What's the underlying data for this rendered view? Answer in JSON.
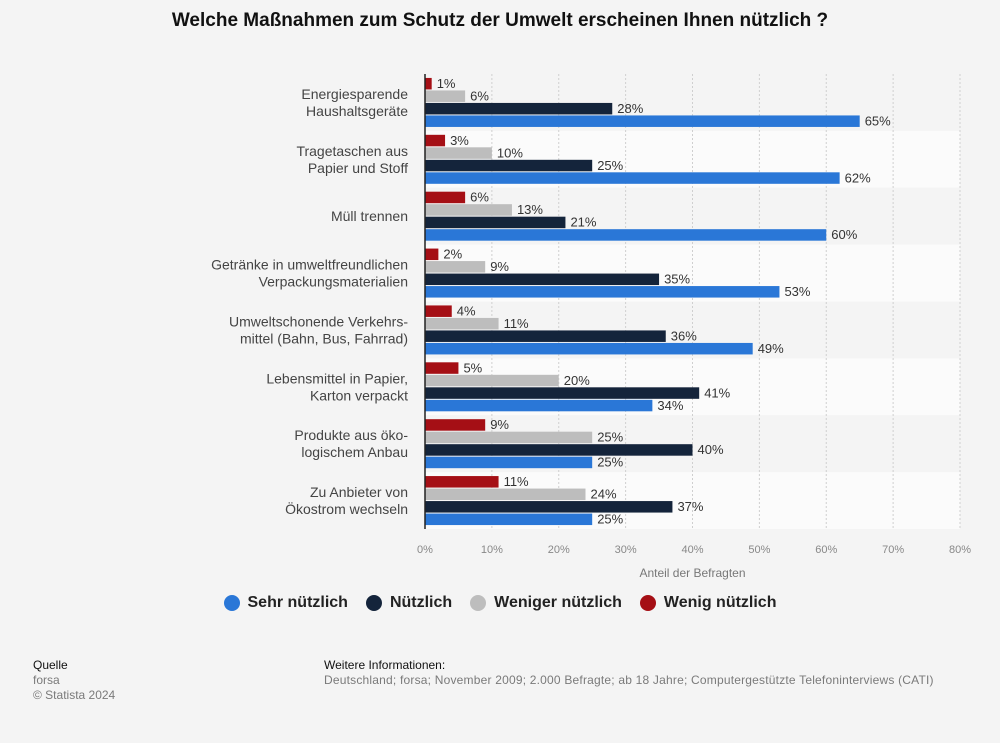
{
  "chart_data": {
    "type": "bar",
    "orientation": "horizontal",
    "title": "Welche Maßnahmen zum Schutz der Umwelt erscheinen Ihnen nützlich ?",
    "xlabel": "Anteil der Befragten",
    "xlim": [
      0,
      80
    ],
    "xticks": [
      "0%",
      "10%",
      "20%",
      "30%",
      "40%",
      "50%",
      "60%",
      "70%",
      "80%"
    ],
    "grid": true,
    "legend_position": "bottom",
    "categories": [
      [
        "Energiesparende",
        "Haushaltsgeräte"
      ],
      [
        "Tragetaschen aus",
        "Papier und Stoff"
      ],
      [
        "Müll trennen"
      ],
      [
        "Getränke in umweltfreundlichen",
        "Verpackungsmaterialien"
      ],
      [
        "Umweltschonende Verkehrs-",
        "mittel (Bahn, Bus, Fahrrad)"
      ],
      [
        "Lebensmittel in Papier,",
        "Karton verpackt"
      ],
      [
        "Produkte aus öko-",
        "logischem Anbau"
      ],
      [
        "Zu Anbieter von",
        "Ökostrom wechseln"
      ]
    ],
    "series": [
      {
        "name": "Wenig nützlich",
        "color": "#a50f15",
        "values": [
          1,
          3,
          6,
          2,
          4,
          5,
          9,
          11
        ]
      },
      {
        "name": "Weniger nützlich",
        "color": "#bdbdbd",
        "values": [
          6,
          10,
          13,
          9,
          11,
          20,
          25,
          24
        ]
      },
      {
        "name": "Nützlich",
        "color": "#14243b",
        "values": [
          28,
          25,
          21,
          35,
          36,
          41,
          40,
          37
        ]
      },
      {
        "name": "Sehr nützlich",
        "color": "#2a77d7",
        "values": [
          65,
          62,
          60,
          53,
          49,
          34,
          25,
          25
        ]
      }
    ],
    "value_suffix": "%"
  },
  "legend": [
    {
      "label": "Sehr nützlich",
      "color": "#2a77d7"
    },
    {
      "label": "Nützlich",
      "color": "#14243b"
    },
    {
      "label": "Weniger nützlich",
      "color": "#bdbdbd"
    },
    {
      "label": "Wenig nützlich",
      "color": "#a50f15"
    }
  ],
  "footer": {
    "source_heading": "Quelle",
    "source": "forsa",
    "copyright": "© Statista 2024",
    "info_heading": "Weitere Informationen:",
    "info": "Deutschland; forsa; November 2009; 2.000 Befragte; ab 18 Jahre; Computergestützte Telefoninterviews (CATI)"
  }
}
